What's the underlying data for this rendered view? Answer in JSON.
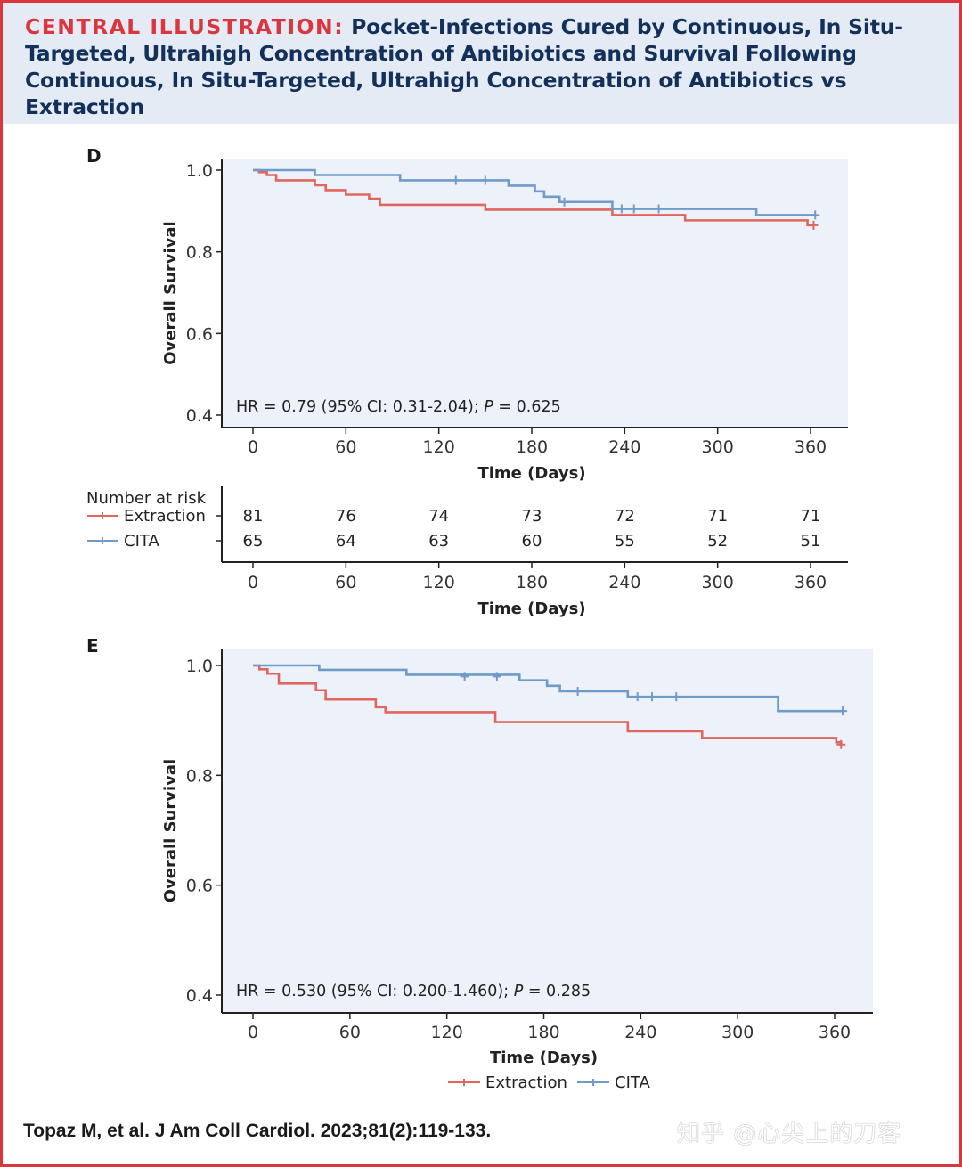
{
  "header": {
    "label": "CENTRAL ILLUSTRATION:",
    "title": "Pocket-Infections Cured by Continuous, In Situ-Targeted, Ultrahigh Concentration of Antibiotics and Survival Following Continuous, In Situ-Targeted, Ultrahigh Concentration of Antibiotics vs Extraction"
  },
  "colors": {
    "extraction": "#e0665e",
    "cita": "#6f9bc8",
    "plot_bg": "#edf2fa",
    "header_bg": "#e4ebf5",
    "accent": "#d9363e"
  },
  "citation": "Topaz M, et al. J Am Coll Cardiol. 2023;81(2):119-133.",
  "watermark": "知乎 @心尖上的刀客",
  "chart_data": [
    {
      "panel": "D",
      "type": "line",
      "subtype": "kaplan-meier",
      "xlabel": "Time (Days)",
      "ylabel": "Overall Survival",
      "xlim": [
        0,
        365
      ],
      "ylim": [
        0.4,
        1.0
      ],
      "xticks": [
        "0",
        "60",
        "120",
        "180",
        "240",
        "300",
        "360"
      ],
      "yticks": [
        "0.4",
        "0.6",
        "0.8",
        "1.0"
      ],
      "annotation": "HR = 0.79 (95% CI: 0.31-2.04); P = 0.625",
      "series": [
        {
          "name": "Extraction",
          "steps": [
            [
              0,
              1.0
            ],
            [
              4,
              0.995
            ],
            [
              9,
              0.988
            ],
            [
              15,
              0.975
            ],
            [
              40,
              0.963
            ],
            [
              47,
              0.951
            ],
            [
              60,
              0.94
            ],
            [
              75,
              0.93
            ],
            [
              82,
              0.915
            ],
            [
              150,
              0.903
            ],
            [
              232,
              0.89
            ],
            [
              279,
              0.877
            ],
            [
              358,
              0.865
            ],
            [
              362,
              0.865
            ]
          ],
          "censored": [
            [
              362,
              0.865
            ]
          ]
        },
        {
          "name": "CITA",
          "steps": [
            [
              0,
              1.0
            ],
            [
              40,
              0.988
            ],
            [
              95,
              0.975
            ],
            [
              165,
              0.962
            ],
            [
              182,
              0.948
            ],
            [
              188,
              0.935
            ],
            [
              198,
              0.922
            ],
            [
              232,
              0.905
            ],
            [
              325,
              0.89
            ],
            [
              363,
              0.89
            ]
          ],
          "censored": [
            [
              131,
              0.975
            ],
            [
              150,
              0.975
            ],
            [
              201,
              0.922
            ],
            [
              238,
              0.905
            ],
            [
              246,
              0.905
            ],
            [
              262,
              0.905
            ],
            [
              363,
              0.89
            ]
          ]
        }
      ],
      "risk_table": {
        "title": "Number at risk",
        "times": [
          "0",
          "60",
          "120",
          "180",
          "240",
          "300",
          "360"
        ],
        "rows": [
          {
            "label": "Extraction",
            "values": [
              "81",
              "76",
              "74",
              "73",
              "72",
              "71",
              "71"
            ]
          },
          {
            "label": "CITA",
            "values": [
              "65",
              "64",
              "63",
              "60",
              "55",
              "52",
              "51"
            ]
          }
        ],
        "xlabel": "Time (Days)"
      }
    },
    {
      "panel": "E",
      "type": "line",
      "subtype": "kaplan-meier",
      "xlabel": "Time (Days)",
      "ylabel": "Overall Survival",
      "xlim": [
        0,
        385
      ],
      "ylim": [
        0.4,
        1.0
      ],
      "xticks": [
        "0",
        "60",
        "120",
        "180",
        "240",
        "300",
        "360"
      ],
      "yticks": [
        "0.4",
        "0.6",
        "0.8",
        "1.0"
      ],
      "annotation": "HR = 0.530 (95% CI: 0.200-1.460); P = 0.285",
      "legend": {
        "position": "bottom",
        "entries": [
          "Extraction",
          "CITA"
        ]
      },
      "series": [
        {
          "name": "Extraction",
          "steps": [
            [
              0,
              1.0
            ],
            [
              4,
              0.993
            ],
            [
              9,
              0.985
            ],
            [
              16,
              0.967
            ],
            [
              39,
              0.955
            ],
            [
              45,
              0.938
            ],
            [
              76,
              0.924
            ],
            [
              82,
              0.915
            ],
            [
              150,
              0.897
            ],
            [
              232,
              0.88
            ],
            [
              278,
              0.868
            ],
            [
              361,
              0.86
            ],
            [
              364,
              0.856
            ]
          ],
          "censored": [
            [
              364,
              0.856
            ]
          ]
        },
        {
          "name": "CITA",
          "steps": [
            [
              0,
              1.0
            ],
            [
              41,
              0.992
            ],
            [
              95,
              0.983
            ],
            [
              165,
              0.973
            ],
            [
              182,
              0.963
            ],
            [
              190,
              0.953
            ],
            [
              232,
              0.943
            ],
            [
              325,
              0.917
            ],
            [
              365,
              0.917
            ]
          ],
          "censored": [
            [
              131,
              0.98
            ],
            [
              151,
              0.98
            ],
            [
              201,
              0.953
            ],
            [
              238,
              0.943
            ],
            [
              247,
              0.943
            ],
            [
              262,
              0.943
            ],
            [
              365,
              0.917
            ]
          ]
        }
      ]
    }
  ]
}
